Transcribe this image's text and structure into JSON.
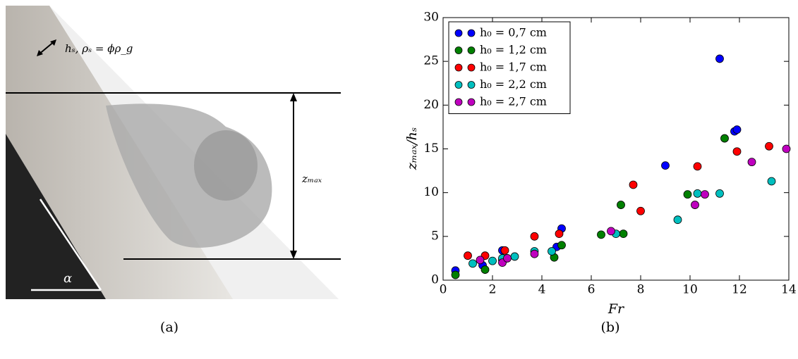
{
  "panel_a": {
    "thickness_label": "hₛ, ρₛ = ϕρ_g",
    "height_label": "zₘₐₓ",
    "angle_label": "α",
    "caption": "(a)"
  },
  "caption_b": "(b)",
  "chart_data": {
    "type": "scatter",
    "xlabel": "Fr",
    "ylabel": "zₘₐₓ/hₛ",
    "xlim": [
      0,
      14
    ],
    "ylim": [
      0,
      30
    ],
    "xticks": [
      0,
      2,
      4,
      6,
      8,
      10,
      12,
      14
    ],
    "yticks": [
      0,
      5,
      10,
      15,
      20,
      25,
      30
    ],
    "legend": "upper left",
    "series": [
      {
        "name": "h₀ = 0,7 cm",
        "color": "#0000ff",
        "x": [
          0.5,
          1.6,
          2.4,
          4.6,
          4.8,
          9.0,
          11.2,
          11.8,
          11.9
        ],
        "values": [
          1.1,
          1.7,
          3.4,
          3.8,
          5.9,
          13.1,
          25.3,
          17.0,
          17.2
        ]
      },
      {
        "name": "h₀ = 1,2 cm",
        "color": "#008000",
        "x": [
          0.5,
          1.7,
          2.4,
          4.5,
          4.8,
          6.4,
          7.2,
          7.3,
          9.9,
          11.4
        ],
        "values": [
          0.6,
          1.2,
          2.3,
          2.6,
          4.0,
          5.2,
          8.6,
          5.3,
          9.8,
          16.2
        ]
      },
      {
        "name": "h₀ = 1,7 cm",
        "color": "#ff0000",
        "x": [
          1.0,
          1.7,
          2.5,
          3.7,
          4.7,
          7.7,
          8.0,
          10.3,
          11.9,
          13.2
        ],
        "values": [
          2.8,
          2.8,
          3.4,
          5.0,
          5.3,
          10.9,
          7.9,
          13.0,
          14.7,
          15.3
        ]
      },
      {
        "name": "h₀ = 2,2 cm",
        "color": "#00bfbf",
        "x": [
          1.2,
          2.0,
          2.4,
          2.9,
          3.7,
          4.4,
          7.0,
          9.5,
          10.3,
          11.2,
          13.3
        ],
        "values": [
          1.9,
          2.2,
          2.5,
          2.7,
          3.3,
          3.3,
          5.3,
          6.9,
          9.9,
          9.9,
          11.3
        ]
      },
      {
        "name": "h₀ = 2,7 cm",
        "color": "#bf00bf",
        "x": [
          1.5,
          2.4,
          2.6,
          3.7,
          6.8,
          10.2,
          10.6,
          12.5,
          13.9
        ],
        "values": [
          2.3,
          2.0,
          2.5,
          3.0,
          5.6,
          8.6,
          9.8,
          13.5,
          15.0
        ]
      }
    ]
  }
}
